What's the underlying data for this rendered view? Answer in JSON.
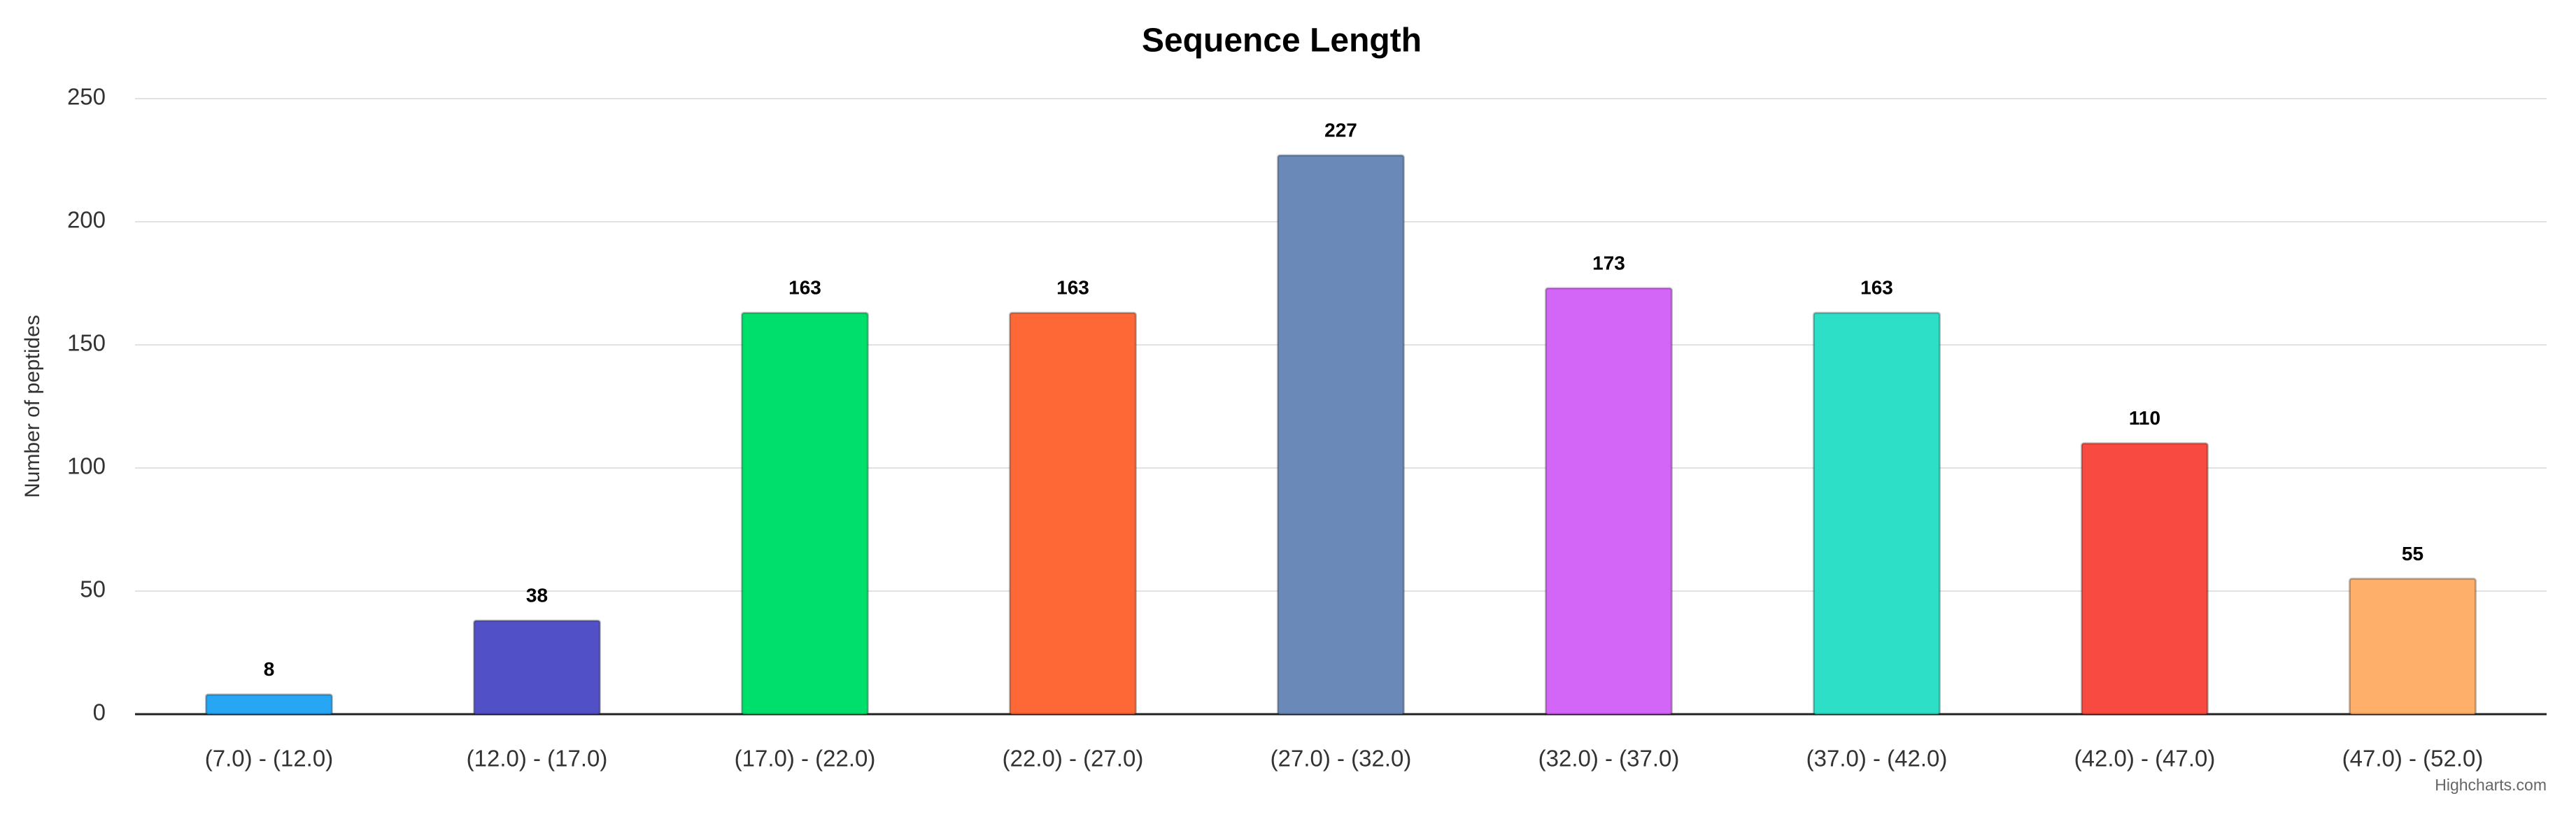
{
  "chart_data": {
    "type": "bar",
    "title": "Sequence Length",
    "y_axis_label": "Number of peptides",
    "categories": [
      "(7.0) - (12.0)",
      "(12.0) - (17.0)",
      "(17.0) - (22.0)",
      "(22.0) - (27.0)",
      "(27.0) - (32.0)",
      "(32.0) - (37.0)",
      "(37.0) - (42.0)",
      "(42.0) - (47.0)",
      "(47.0) - (52.0)"
    ],
    "values": [
      8,
      38,
      163,
      163,
      227,
      173,
      163,
      110,
      55
    ],
    "colors": [
      "#26a6f3",
      "#5250c6",
      "#00df6b",
      "#fe6836",
      "#6a89b9",
      "#d466f7",
      "#2edfc8",
      "#f94a41",
      "#feb06a"
    ],
    "ylim": [
      0,
      250
    ],
    "yticks": [
      0,
      50,
      100,
      150,
      200,
      250
    ],
    "grid": true,
    "credits": "Highcharts.com"
  }
}
